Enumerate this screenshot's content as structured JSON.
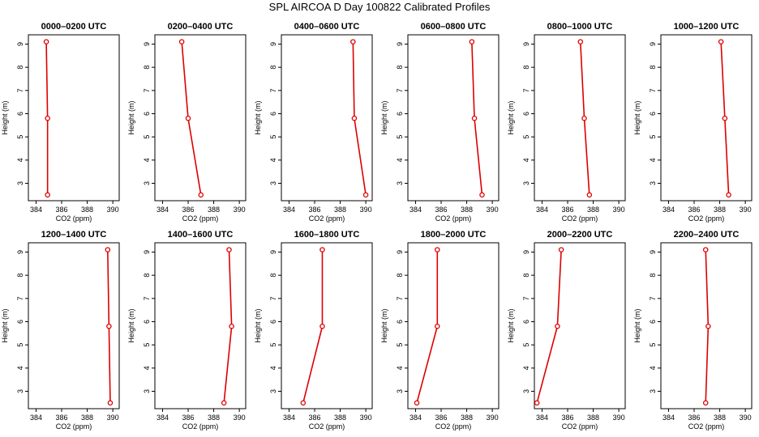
{
  "title": "SPL AIRCOA D  Day 100822  Calibrated Profiles",
  "colors": {
    "series": "#dd0000",
    "axis": "#000000"
  },
  "chart_data": {
    "type": "line",
    "xlabel": "CO2 (ppm)",
    "ylabel": "Height (m)",
    "xlim": [
      383.4,
      390.5
    ],
    "ylim": [
      2.25,
      9.4
    ],
    "xticks": [
      384,
      386,
      388,
      390
    ],
    "yticks": [
      3,
      4,
      5,
      6,
      7,
      8,
      9
    ],
    "heights": [
      9.1,
      5.8,
      2.5
    ],
    "panels": [
      {
        "title": "0000–0200 UTC",
        "co2": [
          384.8,
          384.9,
          384.9
        ]
      },
      {
        "title": "0200–0400 UTC",
        "co2": [
          385.5,
          386.0,
          387.0
        ]
      },
      {
        "title": "0400–0600 UTC",
        "co2": [
          389.0,
          389.1,
          390.0
        ]
      },
      {
        "title": "0600–0800 UTC",
        "co2": [
          388.4,
          388.6,
          389.2
        ]
      },
      {
        "title": "0800–1000 UTC",
        "co2": [
          387.0,
          387.3,
          387.7
        ]
      },
      {
        "title": "1000–1200 UTC",
        "co2": [
          388.1,
          388.4,
          388.7
        ]
      },
      {
        "title": "1200–1400 UTC",
        "co2": [
          389.6,
          389.7,
          389.8
        ]
      },
      {
        "title": "1400–1600 UTC",
        "co2": [
          389.2,
          389.4,
          388.8
        ]
      },
      {
        "title": "1600–1800 UTC",
        "co2": [
          386.6,
          386.6,
          385.1
        ]
      },
      {
        "title": "1800–2000 UTC",
        "co2": [
          385.7,
          385.7,
          384.1
        ]
      },
      {
        "title": "2000–2200 UTC",
        "co2": [
          385.5,
          385.2,
          383.6
        ]
      },
      {
        "title": "2200–2400 UTC",
        "co2": [
          386.9,
          387.1,
          386.9
        ]
      }
    ]
  }
}
